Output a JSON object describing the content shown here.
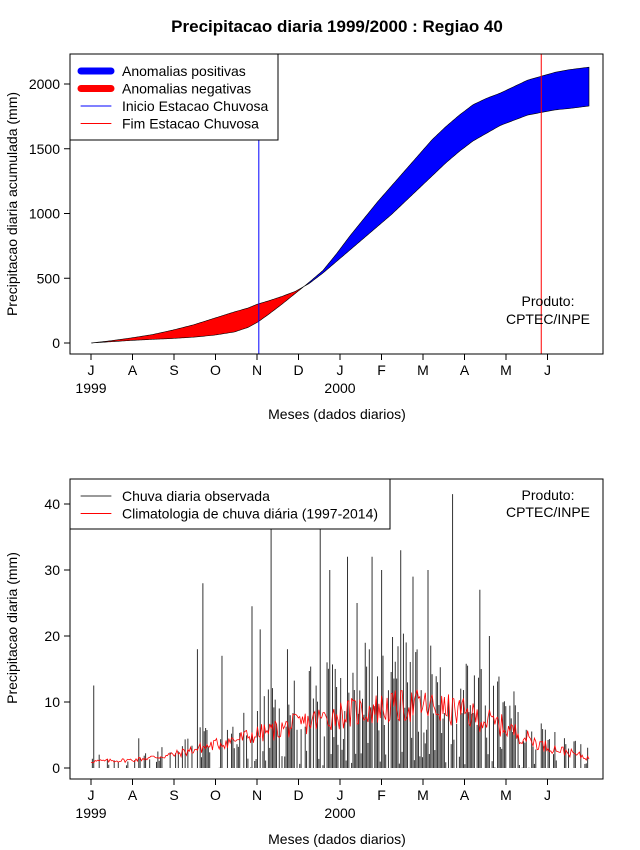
{
  "title": "Precipitacao diaria 1999/2000 : Regiao 40",
  "chart_data": [
    {
      "type": "area",
      "xlabel": "Meses (dados diarios)",
      "ylabel": "Precipitacao diaria acumulada (mm)",
      "ylim": [
        0,
        2200
      ],
      "yticks": [
        0,
        500,
        1000,
        1500,
        2000
      ],
      "xlim_days": [
        0,
        365
      ],
      "month_ticks": [
        "J",
        "A",
        "S",
        "O",
        "N",
        "D",
        "J",
        "F",
        "M",
        "A",
        "M",
        "J"
      ],
      "year_labels": [
        {
          "label": "1999",
          "month_index": 0
        },
        {
          "label": "2000",
          "month_index": 6
        }
      ],
      "legend": [
        {
          "label": "Anomalias positivas",
          "color": "#0000ff",
          "style": "thick"
        },
        {
          "label": "Anomalias negativas",
          "color": "#ff0000",
          "style": "thick"
        },
        {
          "label": "Inicio Estacao Chuvosa",
          "color": "#0000ff",
          "style": "thin"
        },
        {
          "label": "Fim Estacao Chuvosa",
          "color": "#ff0000",
          "style": "thin"
        }
      ],
      "annotation": [
        "Produto:",
        "CPTEC/INPE"
      ],
      "rainy_season_start_day": 123,
      "rainy_season_end_day": 330,
      "observed_cumulative": {
        "day": [
          0,
          15,
          30,
          45,
          60,
          75,
          90,
          105,
          115,
          122,
          130,
          140,
          150,
          160,
          170,
          180,
          190,
          200,
          210,
          220,
          230,
          240,
          250,
          260,
          270,
          280,
          290,
          300,
          310,
          320,
          330,
          340,
          350,
          365
        ],
        "mm": [
          0,
          10,
          20,
          28,
          35,
          45,
          60,
          85,
          120,
          160,
          220,
          300,
          385,
          470,
          560,
          690,
          830,
          960,
          1090,
          1210,
          1330,
          1450,
          1570,
          1670,
          1760,
          1840,
          1890,
          1930,
          1980,
          2030,
          2060,
          2090,
          2110,
          2130
        ]
      },
      "climatology_cumulative": {
        "day": [
          0,
          15,
          30,
          45,
          60,
          75,
          90,
          105,
          115,
          122,
          130,
          140,
          150,
          160,
          170,
          180,
          190,
          200,
          210,
          220,
          230,
          240,
          250,
          260,
          270,
          280,
          290,
          300,
          310,
          320,
          330,
          340,
          350,
          365
        ],
        "mm": [
          0,
          18,
          40,
          65,
          100,
          140,
          190,
          240,
          270,
          300,
          325,
          360,
          400,
          460,
          540,
          630,
          720,
          810,
          900,
          990,
          1090,
          1190,
          1290,
          1390,
          1480,
          1560,
          1620,
          1680,
          1720,
          1760,
          1780,
          1800,
          1810,
          1830
        ]
      }
    },
    {
      "type": "bar",
      "xlabel": "Meses (dados diarios)",
      "ylabel": "Precipitacao diaria (mm)",
      "ylim": [
        0,
        42
      ],
      "yticks": [
        0,
        10,
        20,
        30,
        40
      ],
      "xlim_days": [
        0,
        365
      ],
      "month_ticks": [
        "J",
        "A",
        "S",
        "O",
        "N",
        "D",
        "J",
        "F",
        "M",
        "A",
        "M",
        "J"
      ],
      "year_labels": [
        {
          "label": "1999",
          "month_index": 0
        },
        {
          "label": "2000",
          "month_index": 6
        }
      ],
      "legend": [
        {
          "label": "Chuva diaria observada",
          "color": "#333333",
          "style": "thin"
        },
        {
          "label": "Climatologia de chuva diária (1997-2014)",
          "color": "#ff0000",
          "style": "thin"
        }
      ],
      "annotation": [
        "Produto:",
        "CPTEC/INPE"
      ],
      "observed_daily_notable": {
        "day": [
          2,
          35,
          78,
          82,
          96,
          118,
          124,
          132,
          144,
          168,
          175,
          188,
          195,
          206,
          213,
          227,
          236,
          247,
          265,
          285,
          292
        ],
        "mm": [
          12.5,
          4.5,
          18,
          28,
          17,
          24.5,
          21,
          37,
          18,
          37,
          30,
          32,
          25,
          32,
          30,
          33,
          29,
          30,
          41.5,
          27,
          20
        ]
      },
      "climatology_daily_smoothed": {
        "day": [
          0,
          30,
          60,
          90,
          120,
          150,
          180,
          210,
          240,
          270,
          300,
          330,
          365
        ],
        "mm": [
          1,
          1.2,
          2,
          3.5,
          5,
          6.5,
          8,
          9,
          9.5,
          8.5,
          6.5,
          3.5,
          1.5
        ]
      }
    }
  ]
}
